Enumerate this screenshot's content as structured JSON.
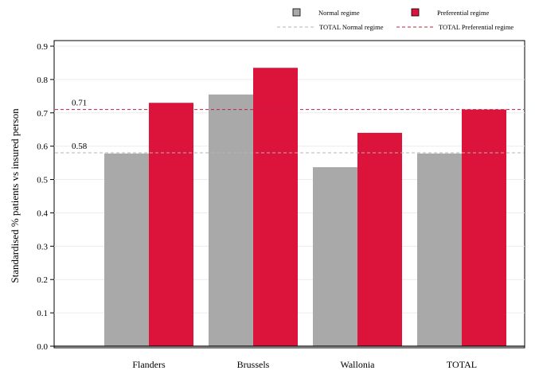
{
  "chart_data": {
    "type": "bar",
    "categories": [
      "Flanders",
      "Brussels",
      "Wallonia",
      "TOTAL"
    ],
    "series": [
      {
        "name": "Normal regime",
        "values": [
          0.578,
          0.755,
          0.537,
          0.578
        ],
        "color": "#a9a9a9"
      },
      {
        "name": "Preferential regime",
        "values": [
          0.73,
          0.835,
          0.64,
          0.71
        ],
        "color": "#dc143c"
      }
    ],
    "reference_lines": [
      {
        "name": "TOTAL Normal regime",
        "value": 0.58,
        "label": "0.58",
        "color": "#b5b5b5",
        "style": "dashed"
      },
      {
        "name": "TOTAL Preferential regime",
        "value": 0.71,
        "label": "0.71",
        "color": "#c81e46",
        "style": "dashed"
      }
    ],
    "title": "",
    "xlabel": "",
    "ylabel": "Standardised % patients vs insured person",
    "ylim": [
      0,
      0.9
    ],
    "yticks": [
      "0.0",
      "0.1",
      "0.2",
      "0.3",
      "0.4",
      "0.5",
      "0.6",
      "0.7",
      "0.8",
      "0.9"
    ],
    "grid": true,
    "legend_position": "top-right"
  }
}
